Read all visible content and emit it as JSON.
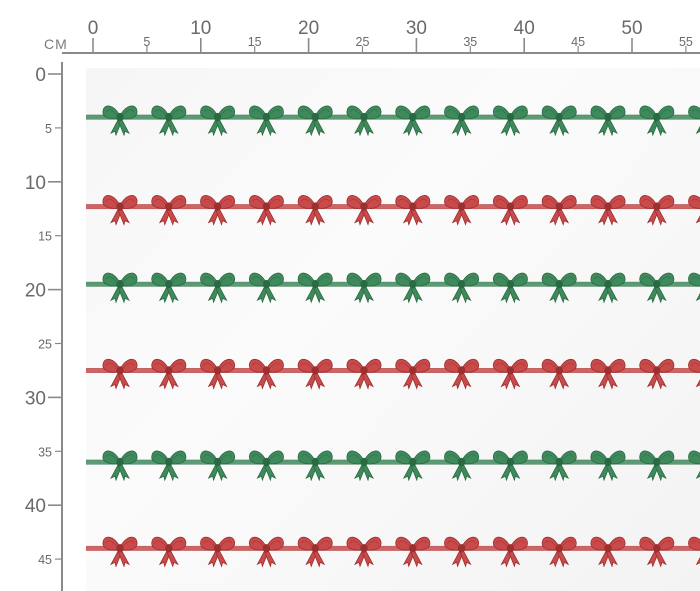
{
  "ruler": {
    "unit": "CM",
    "horizontal_major": [
      "0",
      "10",
      "20",
      "30",
      "40",
      "50"
    ],
    "horizontal_minor": [
      "5",
      "15",
      "25",
      "35",
      "45",
      "55"
    ],
    "vertical_major": [
      "0",
      "10",
      "20",
      "30",
      "40"
    ],
    "vertical_minor": [
      "5",
      "15",
      "25",
      "35",
      "45"
    ]
  },
  "pattern": {
    "motif": "bow-on-ribbon",
    "rows": [
      {
        "color": "green",
        "position_cm": 4
      },
      {
        "color": "red",
        "position_cm": 12.3
      },
      {
        "color": "green",
        "position_cm": 19.5
      },
      {
        "color": "red",
        "position_cm": 27.5
      },
      {
        "color": "green",
        "position_cm": 36.0
      },
      {
        "color": "red",
        "position_cm": 44.0
      }
    ],
    "bows_per_row": 13,
    "colors": {
      "green": "#3f8a5c",
      "green_dark": "#2a6a42",
      "red": "#c94a4a",
      "red_dark": "#9c2f30"
    }
  }
}
